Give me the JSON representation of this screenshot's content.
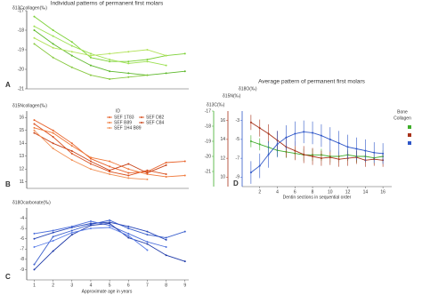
{
  "chart_data": [
    {
      "type": "line",
      "title": "Individual patterns of permanent first molars",
      "panel_label": "A",
      "ylabel": "δ13Ccollagen(‰)",
      "x": [
        1,
        2,
        3,
        4,
        5,
        6,
        7,
        8,
        9
      ],
      "xlim": [
        0.6,
        9.2
      ],
      "ylim": [
        -21,
        -17
      ],
      "yticks": [
        -17,
        -18,
        -19,
        -20,
        -21
      ],
      "series": [
        {
          "color": "#7cd137",
          "values": [
            -17.3,
            -18.0,
            -18.6,
            -19.4,
            -19.6,
            -19.6,
            -19.5,
            -19.3,
            -19.2
          ]
        },
        {
          "color": "#9be04f",
          "values": [
            -17.8,
            -18.3,
            -18.8,
            -19.2,
            -19.5,
            -19.7,
            -19.6,
            -19.8,
            null
          ]
        },
        {
          "color": "#5cb82a",
          "values": [
            -18.0,
            -18.7,
            -19.3,
            -19.8,
            -20.1,
            -20.2,
            -20.3,
            -20.2,
            -20.1
          ]
        },
        {
          "color": "#b3e35b",
          "values": [
            -18.4,
            -18.9,
            -19.1,
            -19.3,
            -19.2,
            -19.1,
            -19.0,
            -19.3,
            null
          ]
        },
        {
          "color": "#88c940",
          "values": [
            -18.7,
            -19.4,
            -19.9,
            -20.3,
            -20.5,
            -20.4,
            -20.3,
            null,
            null
          ]
        }
      ]
    },
    {
      "type": "line",
      "panel_label": "B",
      "ylabel": "δ15Ncollagen(‰)",
      "legend_title": "ID",
      "x": [
        1,
        2,
        3,
        4,
        5,
        6,
        7,
        8,
        9
      ],
      "xlim": [
        0.6,
        9.2
      ],
      "ylim": [
        10.5,
        16.5
      ],
      "yticks": [
        16,
        15,
        14,
        13,
        12,
        11
      ],
      "series": [
        {
          "name": "SEF 1T83",
          "color": "#e8622a",
          "values": [
            15.8,
            15.0,
            14.0,
            12.8,
            12.2,
            11.7,
            11.8,
            12.5,
            12.6
          ]
        },
        {
          "name": "SEF D82",
          "color": "#d94f1e",
          "values": [
            15.5,
            14.5,
            13.2,
            12.4,
            11.8,
            11.5,
            11.9,
            11.6,
            null
          ]
        },
        {
          "name": "SEF B89",
          "color": "#f07a3c",
          "values": [
            15.2,
            14.8,
            13.8,
            12.9,
            12.6,
            12.0,
            11.6,
            11.4,
            11.5
          ]
        },
        {
          "name": "SEF C84",
          "color": "#c9441a",
          "values": [
            14.8,
            14.0,
            13.4,
            12.6,
            11.9,
            12.4,
            11.7,
            12.3,
            null
          ]
        },
        {
          "name": "SEF 1H4 B89",
          "color": "#f29055",
          "values": [
            15.0,
            13.6,
            12.7,
            12.0,
            11.6,
            11.3,
            11.2,
            null,
            null
          ]
        }
      ]
    },
    {
      "type": "line",
      "panel_label": "C",
      "ylabel": "δ18Ocarbonate(‰)",
      "xlabel": "Approximate age in years",
      "x": [
        1,
        2,
        3,
        4,
        5,
        6,
        7,
        8,
        9
      ],
      "xlim": [
        0.6,
        9.2
      ],
      "xticks": [
        1,
        2,
        3,
        4,
        5,
        6,
        7,
        8,
        9
      ],
      "ylim": [
        -10,
        -3
      ],
      "yticks": [
        -4,
        -5,
        -6,
        -7,
        -8,
        -9
      ],
      "series": [
        {
          "color": "#3a5fcd",
          "values": [
            -8.5,
            -5.8,
            -5.2,
            -4.6,
            -4.2,
            -5.0,
            -5.6,
            -5.9,
            -5.3
          ]
        },
        {
          "color": "#2746b8",
          "values": [
            -6.0,
            -5.4,
            -4.9,
            -4.5,
            -4.4,
            -4.8,
            -5.3,
            -6.1,
            null
          ]
        },
        {
          "color": "#4c6fdc",
          "values": [
            -5.5,
            -5.2,
            -4.8,
            -4.3,
            -4.7,
            -5.5,
            -6.3,
            -6.8,
            null
          ]
        },
        {
          "color": "#1f3aa8",
          "values": [
            -9.0,
            -7.2,
            -5.6,
            -4.7,
            -4.5,
            -5.9,
            -6.5,
            -7.6,
            -8.2
          ]
        },
        {
          "color": "#5a7ee8",
          "values": [
            -6.8,
            -6.2,
            -5.4,
            -5.0,
            -4.9,
            -5.7,
            -7.1,
            null,
            null
          ]
        }
      ]
    },
    {
      "type": "line",
      "title": "Average pattern of permanent first molars",
      "panel_label": "D",
      "xlabel": "Dentin sections in sequential order",
      "ylabel": "δ13C(‰)",
      "y2label": "δ15N(‰)",
      "y3label": "δ18O(‰)",
      "annotations": [
        "Bone",
        "Collagen"
      ],
      "x": [
        1,
        2,
        3,
        4,
        5,
        6,
        7,
        8,
        9,
        10,
        11,
        12,
        13,
        14,
        15,
        16
      ],
      "xlim": [
        0,
        17
      ],
      "xticks": [
        2,
        4,
        6,
        8,
        10,
        12,
        14,
        16
      ],
      "ylim": [
        -22,
        -17
      ],
      "yticks": [
        -21,
        -20,
        -19,
        -18,
        -17
      ],
      "y2lim": [
        9,
        17
      ],
      "y2ticks": [
        10,
        12,
        14,
        16
      ],
      "y3lim": [
        -10,
        -2
      ],
      "y3ticks": [
        -9,
        -7,
        -5,
        -3
      ],
      "series": [
        {
          "color": "#3fae2a",
          "axis": "y",
          "values": [
            -19.0,
            -19.2,
            -19.4,
            -19.6,
            -19.7,
            -19.8,
            -19.9,
            -19.9,
            -19.9,
            -20.0,
            -20.0,
            -19.9,
            -20.0,
            -20.0,
            -20.1,
            -20.0
          ],
          "errors": [
            0.4,
            0.4,
            0.4,
            0.4,
            0.4,
            0.4,
            0.4,
            0.4,
            0.4,
            0.4,
            0.4,
            0.4,
            0.4,
            0.4,
            0.4,
            0.4
          ]
        },
        {
          "color": "#a8321a",
          "axis": "y2",
          "values": [
            15.8,
            15.2,
            14.6,
            13.9,
            13.2,
            12.8,
            12.4,
            12.2,
            12.0,
            12.1,
            11.9,
            12.0,
            12.1,
            11.8,
            11.9,
            11.8
          ],
          "errors": [
            0.8,
            0.9,
            1.0,
            1.0,
            1.1,
            1.0,
            0.9,
            0.9,
            0.8,
            0.8,
            0.8,
            0.8,
            0.7,
            0.7,
            0.7,
            0.7
          ]
        },
        {
          "color": "#2f57c8",
          "axis": "y3",
          "values": [
            -8.5,
            -7.8,
            -6.6,
            -5.5,
            -4.8,
            -4.4,
            -4.2,
            -4.3,
            -4.6,
            -5.0,
            -5.4,
            -5.8,
            -6.0,
            -6.2,
            -6.4,
            -6.5
          ],
          "errors": [
            1.2,
            1.3,
            1.4,
            1.4,
            1.3,
            1.3,
            1.2,
            1.2,
            1.2,
            1.3,
            1.3,
            1.3,
            1.2,
            1.2,
            1.1,
            1.1
          ]
        }
      ]
    }
  ]
}
